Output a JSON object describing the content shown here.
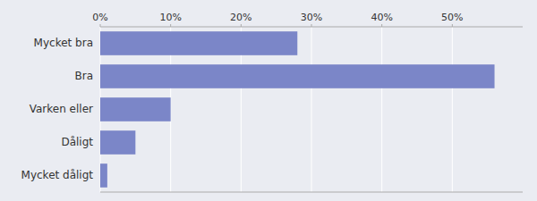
{
  "chart_data": {
    "type": "bar",
    "orientation": "horizontal",
    "categories": [
      "Mycket dåligt",
      "Dåligt",
      "Varken eller",
      "Bra",
      "Mycket bra"
    ],
    "values": [
      1,
      5,
      10,
      56,
      28
    ],
    "color": "#7b86c8",
    "xlim": [
      0,
      60
    ],
    "xticks": [
      {
        "value": 0,
        "label": "0%"
      },
      {
        "value": 10,
        "label": "10%"
      },
      {
        "value": 20,
        "label": "20%"
      },
      {
        "value": 30,
        "label": "30%"
      },
      {
        "value": 40,
        "label": "40%"
      },
      {
        "value": 50,
        "label": "50%"
      }
    ],
    "grid": true
  }
}
